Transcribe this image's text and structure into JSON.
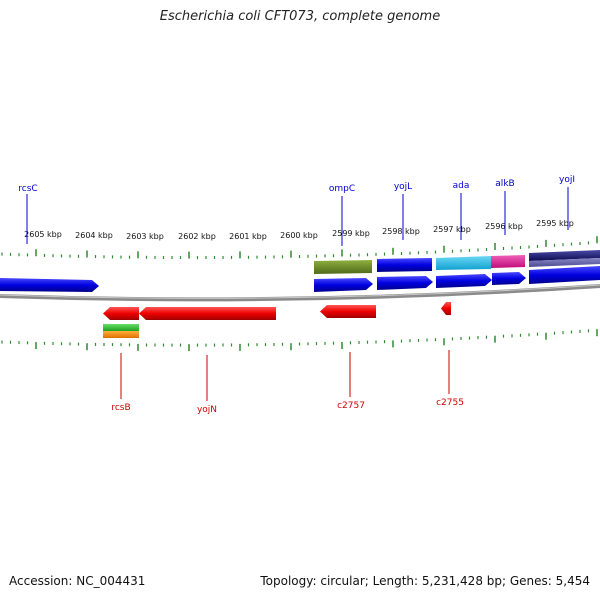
{
  "title": "Escherichia coli CFT073, complete genome",
  "footer": {
    "accession": "Accession: NC_004431",
    "summary": "Topology: circular; Length: 5,231,428 bp; Genes: 5,454"
  },
  "colors": {
    "tick": "#2e8b2e",
    "backbone": "#8a8a8a",
    "forward_gene": "#0000e0",
    "reverse_gene": "#ee0000",
    "forward_label": "#0000cc",
    "reverse_label": "#cc0000",
    "olive_feature": "#6b8e23",
    "cyan_feature": "#1ec0e8",
    "magenta_feature": "#e8189a",
    "navy_feature": "#1a1a7a",
    "green_feature": "#32c832",
    "orange_feature": "#ff8c00"
  },
  "scale_labels": [
    "2605 kbp",
    "2604 kbp",
    "2603 kbp",
    "2602 kbp",
    "2601 kbp",
    "2600 kbp",
    "2599 kbp",
    "2598 kbp",
    "2597 kbp",
    "2596 kbp",
    "2595 kbp"
  ],
  "forward_genes": [
    "rcsC",
    "ompC",
    "yojL",
    "ada",
    "alkB",
    "yojI"
  ],
  "reverse_genes": [
    "rcsB",
    "yojN",
    "c2757",
    "c2755"
  ]
}
